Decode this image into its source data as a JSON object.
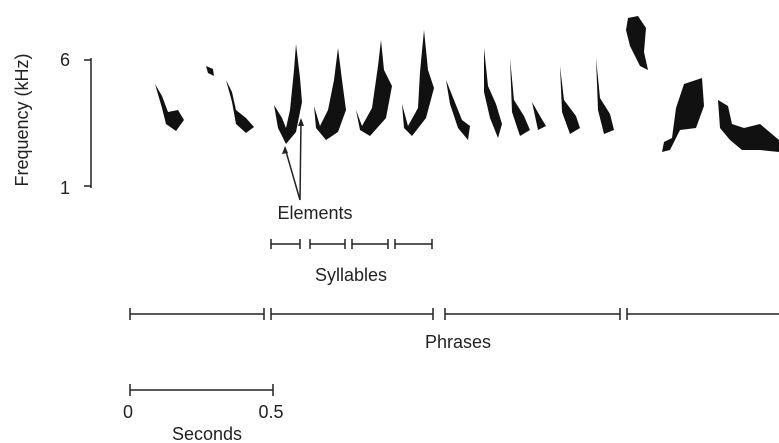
{
  "axis": {
    "label": "Frequency (kHz)",
    "ticks": [
      "6",
      "1"
    ]
  },
  "annotations": {
    "elements": "Elements",
    "syllables": "Syllables",
    "phrases": "Phrases"
  },
  "scale": {
    "start": "0",
    "end": "0.5",
    "label": "Seconds"
  }
}
